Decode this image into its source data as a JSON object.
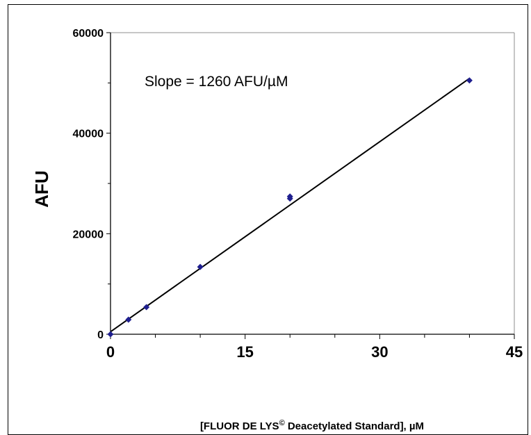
{
  "chart_data": {
    "type": "scatter",
    "title": "",
    "xlabel_main": "[FLUOR DE LYS",
    "xlabel_sup": "©",
    "xlabel_rest": " Deacetylated Standard], µM",
    "ylabel": "AFU",
    "xlim": [
      0,
      45
    ],
    "ylim": [
      0,
      60000
    ],
    "x_ticks": [
      0,
      15,
      30,
      45
    ],
    "y_ticks": [
      0,
      20000,
      40000,
      60000
    ],
    "x_tick_labels": [
      "0",
      "15",
      "30",
      "45"
    ],
    "y_tick_labels": [
      "0",
      "20000",
      "40000",
      "60000"
    ],
    "grid": false,
    "series": [
      {
        "x": [
          0,
          2,
          4,
          10,
          20,
          20,
          40
        ],
        "y": [
          0,
          2900,
          5400,
          13400,
          27400,
          27000,
          50500
        ]
      }
    ],
    "trendline": {
      "x": [
        0,
        40
      ],
      "y": [
        500,
        50900
      ]
    },
    "annotation": "Slope = 1260 AFU/µM",
    "colors": {
      "marker": "#1f1f8f",
      "line": "#000000",
      "axis": "#000000"
    }
  }
}
